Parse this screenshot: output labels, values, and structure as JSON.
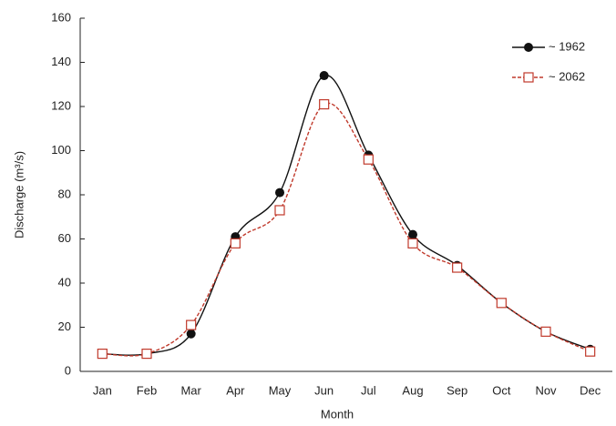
{
  "chart_data": {
    "type": "line",
    "x_label": "Month",
    "y_label": "Discharge (m³/s)",
    "categories": [
      "Jan",
      "Feb",
      "Mar",
      "Apr",
      "May",
      "Jun",
      "Jul",
      "Aug",
      "Sep",
      "Oct",
      "Nov",
      "Dec"
    ],
    "series": [
      {
        "name": "~ 1962",
        "color": "#111111",
        "values": [
          8,
          8,
          17,
          61,
          81,
          134,
          98,
          62,
          48,
          31,
          18,
          10
        ]
      },
      {
        "name": "~ 2062",
        "color": "#c0392b",
        "values": [
          8,
          8,
          21,
          58,
          73,
          121,
          96,
          58,
          47,
          31,
          18,
          9
        ]
      }
    ],
    "ylim": [
      0,
      160
    ],
    "yticks": [
      0,
      20,
      40,
      60,
      80,
      100,
      120,
      140,
      160
    ],
    "legend": "top-right"
  }
}
